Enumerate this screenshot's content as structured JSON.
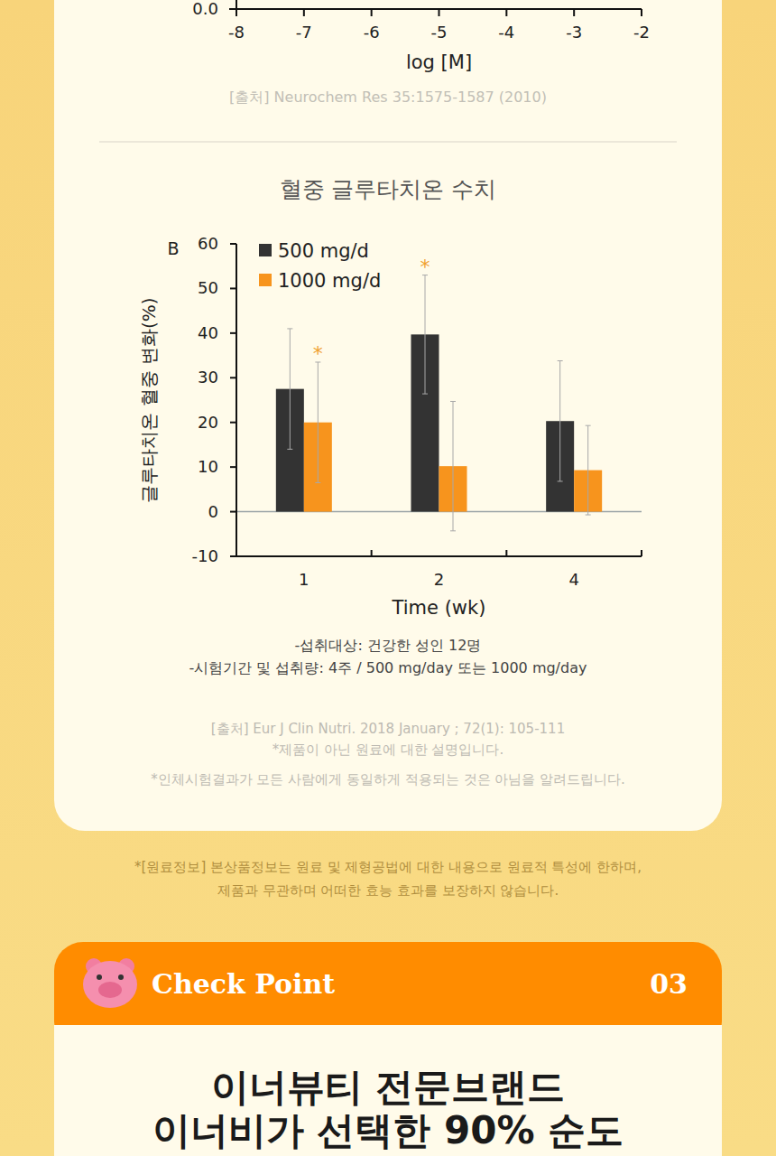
{
  "chart_data": [
    {
      "type": "line",
      "x_label": "log [M]",
      "source": "[출처] Neurochem Res 35:1575-1587 (2010)",
      "xlim": [
        -8,
        -2
      ],
      "xticks": [
        -8,
        -7,
        -6,
        -5,
        -4,
        -3,
        -2
      ],
      "ylim": [
        0,
        1
      ],
      "yticks": [
        {
          "value": 0,
          "label": "0.0"
        }
      ],
      "series": []
    },
    {
      "type": "bar",
      "title": "혈중 글루타치온 수치",
      "panel": "B",
      "y_label": "글루타치온 혈중 변화(%)",
      "x_label": "Time (wk)",
      "categories": [
        "1",
        "2",
        "4"
      ],
      "series": [
        {
          "name": "500 mg/d",
          "color": "#333333",
          "values": [
            27.5,
            39.7,
            20.3
          ],
          "errors": [
            13.5,
            13.3,
            13.5
          ]
        },
        {
          "name": "1000 mg/d",
          "color": "#f7941d",
          "values": [
            20.0,
            10.2,
            9.3
          ],
          "errors": [
            13.5,
            14.5,
            10.0
          ]
        }
      ],
      "ylim": [
        -10,
        60
      ],
      "yticks": [
        -10,
        0,
        10,
        20,
        30,
        40,
        50,
        60
      ],
      "grid": false,
      "legend": "upper left",
      "annotations": [
        {
          "text": "*",
          "category": 0,
          "series": 1
        },
        {
          "text": "*",
          "category": 1,
          "series": 0
        }
      ],
      "notes": [
        "-섭취대상: 건강한 성인 12명",
        "-시험기간 및 섭취량: 4주 / 500 mg/day 또는 1000 mg/day"
      ],
      "source": "[출처] Eur J Clin Nutri. 2018 January ; 72(1): 105-111",
      "footnotes": [
        "*제품이 아닌 원료에 대한 설명입니다.",
        "*인체시험결과가 모든 사람에게 동일하게 적용되는 것은 아님을 알려드립니다."
      ]
    }
  ],
  "page": {
    "disclaimer": [
      "*[원료정보] 본상품정보는 원료 및 제형공법에 대한 내용으로 원료적 특성에 한하며,",
      "제품과 무관하며 어떠한 효능 효과를 보장하지 않습니다."
    ],
    "check_point": {
      "label": "Check Point",
      "number": "03",
      "headline": [
        "이너뷰티 전문브랜드",
        "이너비가 선택한 90% 순도"
      ]
    }
  }
}
